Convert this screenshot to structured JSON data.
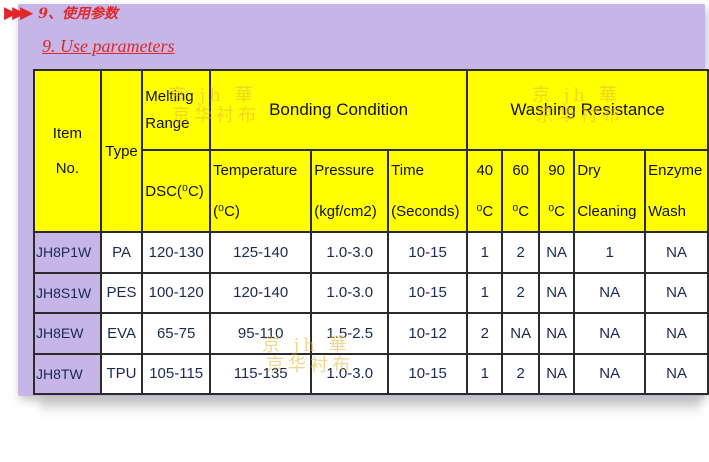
{
  "section": {
    "arrows": "▶▶▶",
    "title_cn": "9、使用参数",
    "title_en": "9. Use parameters"
  },
  "watermark": {
    "line1": "京 jh 華",
    "line2": "京华衬布"
  },
  "table": {
    "headers": {
      "item": [
        "Item",
        "No."
      ],
      "type": "Type",
      "melting": [
        "Melting",
        "Range"
      ],
      "dsc": "DSC(⁰C)",
      "bonding": "Bonding Condition",
      "washing": "Washing Resistance",
      "temperature": [
        "Temperature",
        "(⁰C)"
      ],
      "pressure": [
        "Pressure",
        "(kgf/cm2)"
      ],
      "time": [
        "Time",
        "(Seconds)"
      ],
      "w40": [
        "40",
        "⁰C"
      ],
      "w60": [
        "60",
        "⁰C"
      ],
      "w90": [
        "90",
        "⁰C"
      ],
      "dry": [
        "Dry",
        "Cleaning"
      ],
      "enzyme": [
        "Enzyme",
        "Wash"
      ]
    },
    "rows": [
      {
        "item": "JH8P1W",
        "type": "PA",
        "dsc": "120-130",
        "temperature": "125-140",
        "pressure": "1.0-3.0",
        "time": "10-15",
        "w40": "1",
        "w60": "2",
        "w90": "NA",
        "dry": "1",
        "enzyme": "NA"
      },
      {
        "item": "JH8S1W",
        "type": "PES",
        "dsc": "100-120",
        "temperature": "120-140",
        "pressure": "1.0-3.0",
        "time": "10-15",
        "w40": "1",
        "w60": "2",
        "w90": "NA",
        "dry": "NA",
        "enzyme": "NA"
      },
      {
        "item": "JH8EW",
        "type": "EVA",
        "dsc": "65-75",
        "temperature": "95-110",
        "pressure": "1.5-2.5",
        "time": "10-12",
        "w40": "2",
        "w60": "NA",
        "w90": "NA",
        "dry": "NA",
        "enzyme": "NA"
      },
      {
        "item": "JH8TW",
        "type": "TPU",
        "dsc": "105-115",
        "temperature": "115-135",
        "pressure": "1.0-3.0",
        "time": "10-15",
        "w40": "1",
        "w60": "2",
        "w90": "NA",
        "dry": "NA",
        "enzyme": "NA"
      }
    ]
  },
  "colors": {
    "panel": "#c6b6e8",
    "header": "#ffff00",
    "accent": "#e0272a",
    "watermark": "#e9b33a"
  }
}
